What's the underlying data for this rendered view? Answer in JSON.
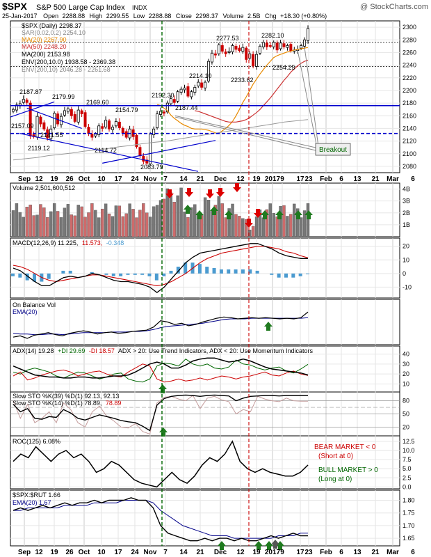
{
  "header": {
    "symbol": "$SPX",
    "name": "S&P 500 Large Cap Index",
    "exchange": "INDX",
    "watermark": "@ StockCharts.com",
    "date": "25-Jan-2017",
    "open_label": "Open",
    "open": "2288.88",
    "high_label": "High",
    "high": "2299.55",
    "low_label": "Low",
    "low": "2288.88",
    "close_label": "Close",
    "close": "2298.37",
    "volume_label": "Volume",
    "volume": "2.5B",
    "chg_label": "Chg",
    "chg": "+18.30 (+0.80%)"
  },
  "colors": {
    "up": "#000000",
    "down": "#cc0000",
    "volume_down": "#cd6b6b",
    "volume_up": "#777777",
    "trendline": "#0000cc",
    "vertical_green": "#006600",
    "vertical_red": "#cc0000",
    "ma20": "#e88a00",
    "ma50": "#cc3333",
    "ma200": "#000000",
    "env": "#888888",
    "macd_hist": "#4b9bd0",
    "arrow_up": "#1f7a1f",
    "arrow_down": "#dd0000",
    "arrow_neutral": "#555555"
  },
  "price_panel": {
    "legend": [
      "$SPX (Daily) 2298.37",
      "SAR(0.02,0.2) 2254.10",
      "MA(20) 2267.90",
      "MA(50) 2248.20",
      "MA(200) 2153.98",
      "ENV(200,10.0) 1938.58 - 2369.38",
      "ENV(200,10) 2046.28 - 2261.68"
    ],
    "legend_colors": [
      "#000000",
      "#888888",
      "#e88a00",
      "#cc3333",
      "#000000",
      "#000000",
      "#888888"
    ],
    "y_ticks": [
      "2300",
      "2280",
      "2260",
      "2240",
      "2220",
      "2200",
      "2180",
      "2160",
      "2140",
      "2120",
      "2100",
      "2080"
    ],
    "annotations": [
      "2187.87",
      "2179.99",
      "2169.60",
      "2157.09",
      "2141.55",
      "2119.12",
      "2154.79",
      "2114.72",
      "2083.79",
      "2192.30",
      "2187.44",
      "2214.10",
      "2277.53",
      "2282.10",
      "2233.62",
      "2254.25"
    ],
    "breakout_label": "Breakout"
  },
  "volume_panel": {
    "legend": "Volume 2,501,600,512",
    "y_ticks": [
      "4B",
      "3B",
      "2B",
      "1B"
    ]
  },
  "macd_panel": {
    "legend_a": "MACD(12,26,9) 11.225,",
    "legend_b": "11.573,",
    "legend_c": "-0.348",
    "y_ticks": [
      "20",
      "10",
      "0",
      "-10"
    ]
  },
  "obv_panel": {
    "legend": "On Balance Vol",
    "ema_legend": "EMA(20)"
  },
  "adx_panel": {
    "legend_a": "ADX(14) 19.28",
    "legend_b": "+DI 29.69",
    "legend_c": "-DI 18.57",
    "legend_d": "ADX > 20: Use Trend Indicators, ADX < 20: Use Momentum Indicators",
    "y_ticks": [
      "40",
      "30",
      "20",
      "10"
    ]
  },
  "sto_panel": {
    "legend_1": "Slow STO %K(39) %D(1) 92.13, 92.13",
    "legend_2a": "Slow STO %K(14) %D(1) 78.89,",
    "legend_2b": "78.89",
    "y_ticks": [
      "80",
      "50",
      "20"
    ]
  },
  "roc_panel": {
    "legend": "ROC(125) 6.08%",
    "bear_1": "BEAR MARKET < 0",
    "bear_2": "(Short at 0)",
    "bull_1": "BULL MARKET > 0",
    "bull_2": "(Long at 0)",
    "y_ticks": [
      "12.5",
      "10.0",
      "7.5",
      "5.0",
      "2.5",
      "0.0"
    ]
  },
  "ratio_panel": {
    "legend": "$SPX:$RUT 1.66",
    "ema_legend": "EMA(20) 1.67",
    "y_ticks": [
      "1.80",
      "1.75",
      "1.70",
      "1.65"
    ]
  },
  "x_axis_labels": [
    "Sep",
    "12",
    "19",
    "26",
    "Oct",
    "10",
    "17",
    "24",
    "Nov",
    "7",
    "14",
    "21",
    "Dec",
    "12",
    "19",
    "2017",
    "9",
    "17",
    "23",
    "Feb",
    "6",
    "13",
    "21",
    "Mar",
    "6"
  ],
  "chart_data": {
    "type": "line",
    "title": "$SPX S&P 500 Large Cap Index INDX",
    "x_range": [
      "2016-09-01",
      "2017-03-10"
    ],
    "x_ticks": [
      "Sep",
      "12",
      "19",
      "26",
      "Oct",
      "10",
      "17",
      "24",
      "Nov",
      "7",
      "14",
      "21",
      "Dec",
      "12",
      "19",
      "2017",
      "9",
      "17",
      "23",
      "Feb",
      "6",
      "13",
      "21",
      "Mar",
      "6"
    ],
    "series": [
      {
        "name": "$SPX (Daily) 2298.37",
        "values": [
          2170,
          2177,
          2179,
          2186,
          2181,
          2128,
          2127,
          2159,
          2147,
          2139,
          2125,
          2139,
          2164,
          2147,
          2159,
          2168,
          2171,
          2160,
          2151,
          2169,
          2163,
          2143,
          2132,
          2126,
          2131,
          2144,
          2140,
          2153,
          2139,
          2142,
          2151,
          2141,
          2133,
          2126,
          2139,
          2127,
          2111,
          2097,
          2088,
          2085,
          2131,
          2139,
          2163,
          2167,
          2164,
          2180,
          2187,
          2181,
          2198,
          2202,
          2204,
          2191,
          2198,
          2205,
          2213,
          2205,
          2213,
          2246,
          2259,
          2256,
          2272,
          2262,
          2258,
          2262,
          2271,
          2265,
          2263,
          2268,
          2249,
          2258,
          2239,
          2257,
          2270,
          2276,
          2269,
          2270,
          2276,
          2264,
          2275,
          2269,
          2271,
          2263,
          2264,
          2265,
          2271,
          2280,
          2298
        ]
      },
      {
        "name": "MA(20)",
        "values": [
          2178,
          2176,
          2172,
          2168,
          2161,
          2156,
          2152,
          2148,
          2145,
          2143,
          2140,
          2139,
          2139,
          2139,
          2138,
          2137,
          2135,
          2133,
          2132,
          2136,
          2140,
          2145,
          2151,
          2160,
          2170,
          2181,
          2190,
          2200,
          2210,
          2218,
          2226,
          2233,
          2240,
          2246,
          2252,
          2255,
          2257,
          2259,
          2261,
          2262,
          2264,
          2265,
          2266,
          2267,
          2268
        ]
      },
      {
        "name": "MA(50)",
        "values": [
          2168,
          2167,
          2165,
          2163,
          2161,
          2159,
          2157,
          2155,
          2153,
          2151,
          2150,
          2150,
          2150,
          2151,
          2152,
          2154,
          2157,
          2161,
          2165,
          2170,
          2176,
          2182,
          2188,
          2195,
          2202,
          2209,
          2216,
          2222,
          2229,
          2234,
          2239,
          2243,
          2246,
          2248
        ]
      },
      {
        "name": "MA(200)",
        "values": [
          2090,
          2092,
          2094,
          2097,
          2099,
          2101,
          2104,
          2106,
          2108,
          2111,
          2113,
          2116,
          2118,
          2120,
          2123,
          2126,
          2129,
          2132,
          2135,
          2138,
          2141,
          2144,
          2147,
          2150,
          2152,
          2154
        ]
      }
    ],
    "support_lines": [
      2176,
      2132
    ],
    "ylim": [
      2070,
      2310
    ],
    "grid": true,
    "legend": "top-left"
  }
}
